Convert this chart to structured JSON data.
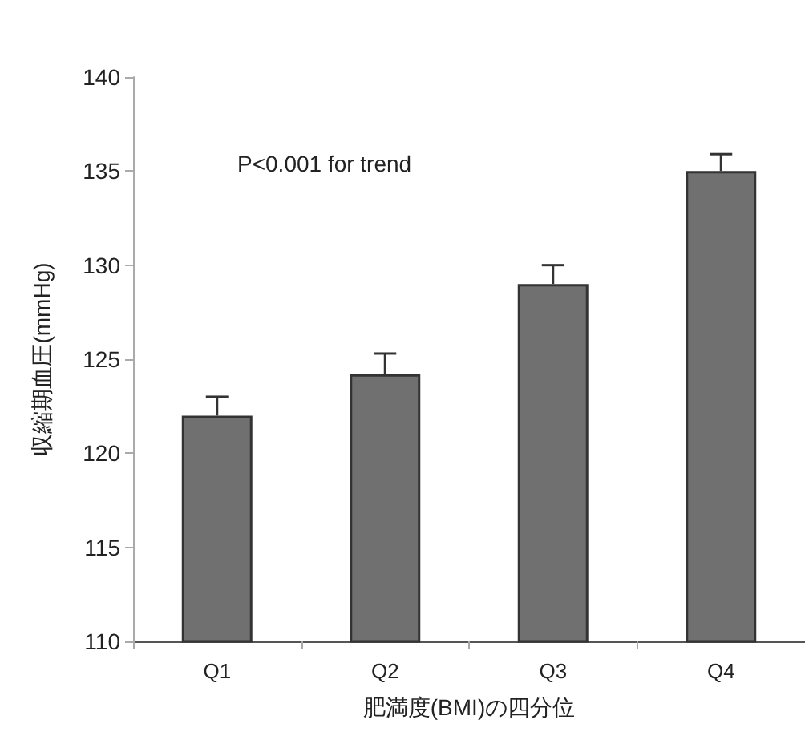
{
  "chart_data": {
    "type": "bar",
    "xlabel": "肥満度(BMI)の四分位",
    "ylabel": "収縮期血圧(mmHg)",
    "categories": [
      "Q1",
      "Q2",
      "Q3",
      "Q4"
    ],
    "values": [
      122,
      124.2,
      129,
      135
    ],
    "errors": [
      [
        122,
        123
      ],
      [
        124.2,
        125.3
      ],
      [
        129,
        130
      ],
      [
        135,
        135.9
      ]
    ],
    "color": "#707070",
    "ylim": [
      110,
      140
    ],
    "yticks": [
      110,
      115,
      120,
      125,
      130,
      135,
      140
    ],
    "annotations": [
      "P<0.001 for trend"
    ]
  }
}
